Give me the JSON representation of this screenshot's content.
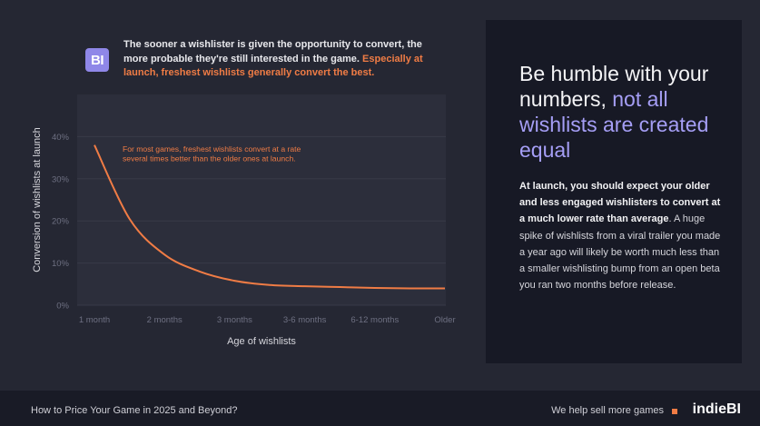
{
  "intro": {
    "logo": "BI",
    "text": "The sooner a wishlister is given the opportunity to convert, the more probable they're still interested in the game. ",
    "highlight": "Especially at launch, freshest wishlists generally convert the best."
  },
  "side_panel": {
    "headline": "Be humble with your numbers, ",
    "headline_accent": "not all wishlists are created equal",
    "body_bold": "At launch, you should expect your older and less engaged wishlisters to convert at a much lower rate than average",
    "body_rest": ". A huge spike of wishlists from a viral trailer you made a year ago will likely be worth much less than a smaller wishlisting bump from an open beta you ran two months before release."
  },
  "footer": {
    "title": "How to Price Your Game in 2025 and Beyond?",
    "tagline": "We help sell more games",
    "brand": "indieBI"
  },
  "colors": {
    "background": "#252733",
    "plot_area": "#2c2e3b",
    "panel": "#171925",
    "accent_orange": "#f07c45",
    "accent_purple": "#a59ef5"
  },
  "chart_data": {
    "type": "line",
    "title": "",
    "xlabel": "Age of wishlists",
    "ylabel": "Conversion of wishlists at launch",
    "categories": [
      "1 month",
      "2  months",
      "3 months",
      "3-6  months",
      "6-12 months",
      "Older"
    ],
    "x": [
      0,
      0.5,
      1,
      1.5,
      2,
      2.5,
      3,
      3.5,
      4,
      4.5,
      5
    ],
    "values": [
      38,
      20.5,
      12,
      8,
      5.8,
      4.8,
      4.5,
      4.3,
      4.1,
      4.0,
      4.0
    ],
    "yticks": [
      "0%",
      "10%",
      "20%",
      "30%",
      "40%"
    ],
    "ylim": [
      0,
      50
    ],
    "annotation": "For most games, freshest wishlists convert at a rate several times better than the older ones at launch.",
    "grid": true,
    "legend": "none"
  }
}
